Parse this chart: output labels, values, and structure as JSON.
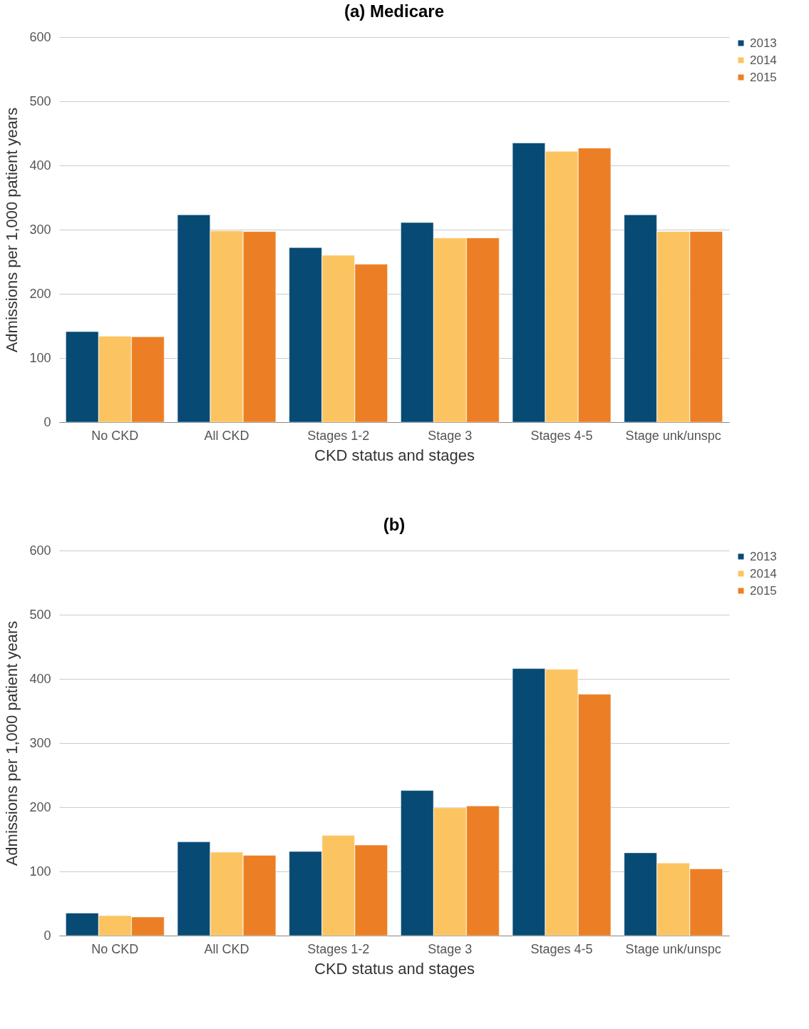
{
  "chart_data": [
    {
      "type": "bar",
      "title": "(a)  Medicare",
      "xlabel": "CKD status and stages",
      "ylabel": "Admissions per 1,000 patient years",
      "categories": [
        "No CKD",
        "All CKD",
        "Stages 1-2",
        "Stage 3",
        "Stages 4-5",
        "Stage unk/unspc"
      ],
      "series": [
        {
          "name": "2013",
          "color": "#074a74",
          "values": [
            141,
            323,
            272,
            311,
            435,
            323
          ]
        },
        {
          "name": "2014",
          "color": "#fcc461",
          "values": [
            134,
            298,
            260,
            287,
            422,
            297
          ]
        },
        {
          "name": "2015",
          "color": "#ec7f25",
          "values": [
            133,
            297,
            246,
            287,
            427,
            297
          ]
        }
      ],
      "ylim": [
        0,
        600
      ],
      "yticks": [
        0,
        100,
        200,
        300,
        400,
        500,
        600
      ],
      "grid": "y",
      "legend": "right"
    },
    {
      "type": "bar",
      "title": "(b)",
      "xlabel": "CKD status and stages",
      "ylabel": "Admissions per 1,000 patient years",
      "categories": [
        "No CKD",
        "All CKD",
        "Stages 1-2",
        "Stage 3",
        "Stages 4-5",
        "Stage unk/unspc"
      ],
      "series": [
        {
          "name": "2013",
          "color": "#074a74",
          "values": [
            35,
            146,
            131,
            226,
            416,
            129
          ]
        },
        {
          "name": "2014",
          "color": "#fcc461",
          "values": [
            31,
            130,
            156,
            199,
            415,
            113
          ]
        },
        {
          "name": "2015",
          "color": "#ec7f25",
          "values": [
            29,
            125,
            141,
            202,
            376,
            104
          ]
        }
      ],
      "ylim": [
        0,
        600
      ],
      "yticks": [
        0,
        100,
        200,
        300,
        400,
        500,
        600
      ],
      "grid": "y",
      "legend": "right"
    }
  ]
}
